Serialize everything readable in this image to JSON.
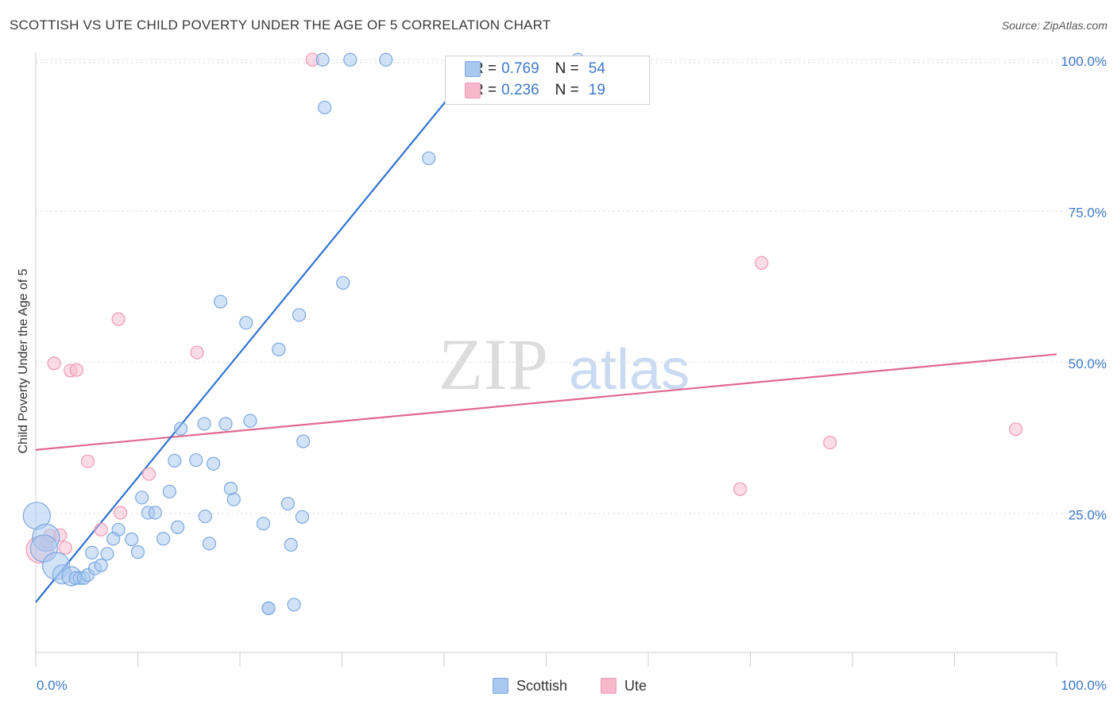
{
  "title": "SCOTTISH VS UTE CHILD POVERTY UNDER THE AGE OF 5 CORRELATION CHART",
  "source": "Source: ZipAtlas.com",
  "watermark": {
    "zip": "ZIP",
    "atlas": "atlas"
  },
  "colors": {
    "scottish_fill": "#a8c8f0",
    "scottish_stroke": "#7aa8e0",
    "scottish_line": "#2f74d0",
    "ute_fill": "#f7b8cc",
    "ute_stroke": "#ee9ab4",
    "ute_line": "#e06890",
    "tick_text": "#3c78c8"
  },
  "legend": {
    "rows": [
      {
        "r_label": "R =",
        "r_value": "0.769",
        "n_label": "N =",
        "n_value": "54"
      },
      {
        "r_label": "R =",
        "r_value": "0.236",
        "n_label": "N =",
        "n_value": "19"
      }
    ],
    "bottom": [
      "Scottish",
      "Ute"
    ]
  },
  "chart_data": {
    "type": "scatter",
    "title": "SCOTTISH VS UTE CHILD POVERTY UNDER THE AGE OF 5 CORRELATION CHART",
    "xlabel": "",
    "ylabel": "Child Poverty Under the Age of 5",
    "xlim": [
      0,
      100
    ],
    "ylim": [
      2,
      102
    ],
    "x_tick_labels": [
      "0.0%",
      "100.0%"
    ],
    "y_ticks": [
      25,
      50,
      75,
      100
    ],
    "y_tick_labels": [
      "25.0%",
      "50.0%",
      "75.0%",
      "100.0%"
    ],
    "grid": true,
    "legend_position": "top-center",
    "series": [
      {
        "name": "Scottish",
        "r": 0.769,
        "n": 54,
        "trend": {
          "x": [
            0,
            43.5
          ],
          "y": [
            10.3,
            100
          ]
        },
        "points": [
          {
            "x": 0.1,
            "y": 24.6,
            "s": 3
          },
          {
            "x": 1.0,
            "y": 21.0,
            "s": 3
          },
          {
            "x": 0.8,
            "y": 19.2,
            "s": 3
          },
          {
            "x": 2.0,
            "y": 16.3,
            "s": 3
          },
          {
            "x": 2.6,
            "y": 14.9,
            "s": 2
          },
          {
            "x": 3.5,
            "y": 14.6,
            "s": 2
          },
          {
            "x": 3.9,
            "y": 14.3,
            "s": 1
          },
          {
            "x": 4.3,
            "y": 14.3,
            "s": 1
          },
          {
            "x": 4.7,
            "y": 14.3,
            "s": 1
          },
          {
            "x": 5.1,
            "y": 14.8,
            "s": 1
          },
          {
            "x": 5.8,
            "y": 15.9,
            "s": 1
          },
          {
            "x": 6.4,
            "y": 16.4,
            "s": 1
          },
          {
            "x": 5.5,
            "y": 18.5,
            "s": 1
          },
          {
            "x": 7.0,
            "y": 18.3,
            "s": 1
          },
          {
            "x": 8.1,
            "y": 22.3,
            "s": 1
          },
          {
            "x": 7.6,
            "y": 20.8,
            "s": 1
          },
          {
            "x": 10.0,
            "y": 18.6,
            "s": 1
          },
          {
            "x": 9.4,
            "y": 20.7,
            "s": 1
          },
          {
            "x": 12.5,
            "y": 20.8,
            "s": 1
          },
          {
            "x": 10.4,
            "y": 27.6,
            "s": 1
          },
          {
            "x": 11.0,
            "y": 25.1,
            "s": 1
          },
          {
            "x": 11.7,
            "y": 25.1,
            "s": 1
          },
          {
            "x": 13.9,
            "y": 22.7,
            "s": 1
          },
          {
            "x": 13.1,
            "y": 28.6,
            "s": 1
          },
          {
            "x": 13.6,
            "y": 33.7,
            "s": 1
          },
          {
            "x": 15.7,
            "y": 33.8,
            "s": 1
          },
          {
            "x": 16.6,
            "y": 24.5,
            "s": 1
          },
          {
            "x": 17.0,
            "y": 20.0,
            "s": 1
          },
          {
            "x": 14.2,
            "y": 39.0,
            "s": 1
          },
          {
            "x": 17.4,
            "y": 33.2,
            "s": 1
          },
          {
            "x": 18.1,
            "y": 60.0,
            "s": 1
          },
          {
            "x": 18.6,
            "y": 39.8,
            "s": 1
          },
          {
            "x": 19.1,
            "y": 29.1,
            "s": 1
          },
          {
            "x": 19.4,
            "y": 27.3,
            "s": 1
          },
          {
            "x": 16.5,
            "y": 39.8,
            "s": 1
          },
          {
            "x": 20.6,
            "y": 56.5,
            "s": 1
          },
          {
            "x": 21.0,
            "y": 40.3,
            "s": 1
          },
          {
            "x": 22.3,
            "y": 23.3,
            "s": 1
          },
          {
            "x": 23.8,
            "y": 52.1,
            "s": 1
          },
          {
            "x": 24.7,
            "y": 26.6,
            "s": 1
          },
          {
            "x": 25.0,
            "y": 19.8,
            "s": 1
          },
          {
            "x": 26.1,
            "y": 24.4,
            "s": 1
          },
          {
            "x": 22.8,
            "y": 9.3,
            "s": 1
          },
          {
            "x": 25.3,
            "y": 9.9,
            "s": 1
          },
          {
            "x": 22.8,
            "y": 9.3,
            "s": 1
          },
          {
            "x": 26.2,
            "y": 36.9,
            "s": 1
          },
          {
            "x": 25.8,
            "y": 57.8,
            "s": 1
          },
          {
            "x": 28.3,
            "y": 92.1,
            "s": 1
          },
          {
            "x": 30.1,
            "y": 63.1,
            "s": 1
          },
          {
            "x": 38.5,
            "y": 83.7,
            "s": 1
          },
          {
            "x": 28.1,
            "y": 100,
            "s": 1
          },
          {
            "x": 30.8,
            "y": 100,
            "s": 1
          },
          {
            "x": 34.3,
            "y": 100,
            "s": 1
          },
          {
            "x": 53.1,
            "y": 100,
            "s": 1
          }
        ]
      },
      {
        "name": "Ute",
        "r": 0.236,
        "n": 19,
        "trend": {
          "x": [
            0,
            100
          ],
          "y": [
            35.5,
            51.3
          ]
        },
        "points": [
          {
            "x": 0.4,
            "y": 19.0,
            "s": 3
          },
          {
            "x": 1.1,
            "y": 20.3,
            "s": 1
          },
          {
            "x": 1.4,
            "y": 21.3,
            "s": 1
          },
          {
            "x": 2.4,
            "y": 21.4,
            "s": 1
          },
          {
            "x": 2.9,
            "y": 19.3,
            "s": 1
          },
          {
            "x": 1.8,
            "y": 49.8,
            "s": 1
          },
          {
            "x": 3.4,
            "y": 48.6,
            "s": 1
          },
          {
            "x": 4.0,
            "y": 48.7,
            "s": 1
          },
          {
            "x": 5.1,
            "y": 33.6,
            "s": 1
          },
          {
            "x": 6.4,
            "y": 22.3,
            "s": 1
          },
          {
            "x": 8.3,
            "y": 25.1,
            "s": 1
          },
          {
            "x": 8.1,
            "y": 57.1,
            "s": 1
          },
          {
            "x": 11.1,
            "y": 31.5,
            "s": 1
          },
          {
            "x": 15.8,
            "y": 51.6,
            "s": 1
          },
          {
            "x": 27.1,
            "y": 100,
            "s": 1
          },
          {
            "x": 69.0,
            "y": 29.0,
            "s": 1
          },
          {
            "x": 71.1,
            "y": 66.4,
            "s": 1
          },
          {
            "x": 77.8,
            "y": 36.7,
            "s": 1
          },
          {
            "x": 96.0,
            "y": 38.9,
            "s": 1
          }
        ]
      }
    ]
  }
}
